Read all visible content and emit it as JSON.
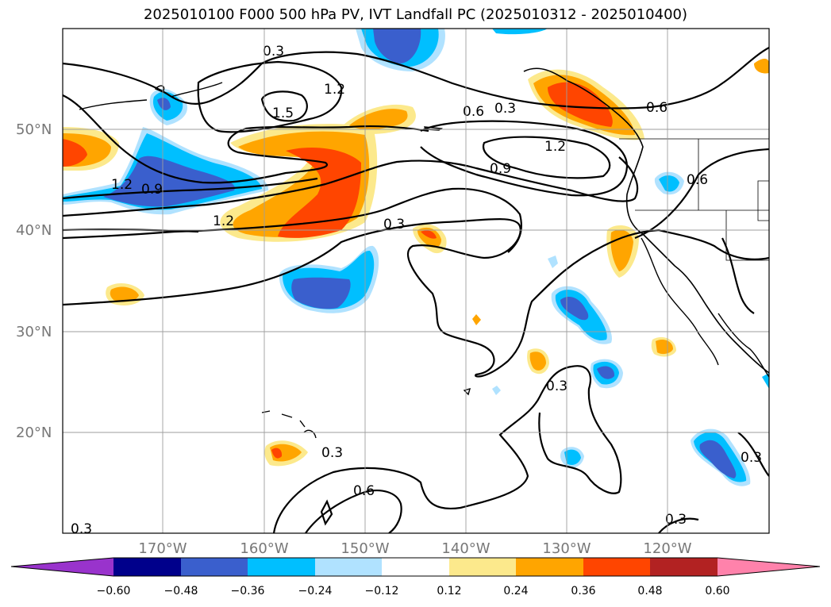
{
  "title": "2025010100 F000 500 hPa PV, IVT Landfall PC (2025010312 - 2025010400)",
  "map": {
    "lat_labels": [
      "50°N",
      "40°N",
      "30°N",
      "20°N"
    ],
    "lon_labels": [
      "170°W",
      "160°W",
      "150°W",
      "140°W",
      "130°W",
      "120°W"
    ],
    "contour_labels": [
      "0.3",
      "1.5",
      "1.2",
      "0.6",
      "0.3",
      "1.2",
      "0.9",
      "0.6",
      "1.2",
      "0.9",
      "1.2",
      "0.3",
      "0.3",
      "0.3",
      "0.6",
      "0.3",
      "0.6",
      "0.3",
      "0.3"
    ]
  },
  "colorbar": {
    "ticks": [
      "−0.60",
      "−0.48",
      "−0.36",
      "−0.24",
      "−0.12",
      "0.12",
      "0.24",
      "0.36",
      "0.48",
      "0.60"
    ],
    "colors": [
      "#9933cc",
      "#00008b",
      "#3a5fcd",
      "#00bfff",
      "#b0e2ff",
      "#ffffff",
      "#fce98c",
      "#ffa500",
      "#ff4500",
      "#b22222",
      "#ff82ab"
    ]
  }
}
